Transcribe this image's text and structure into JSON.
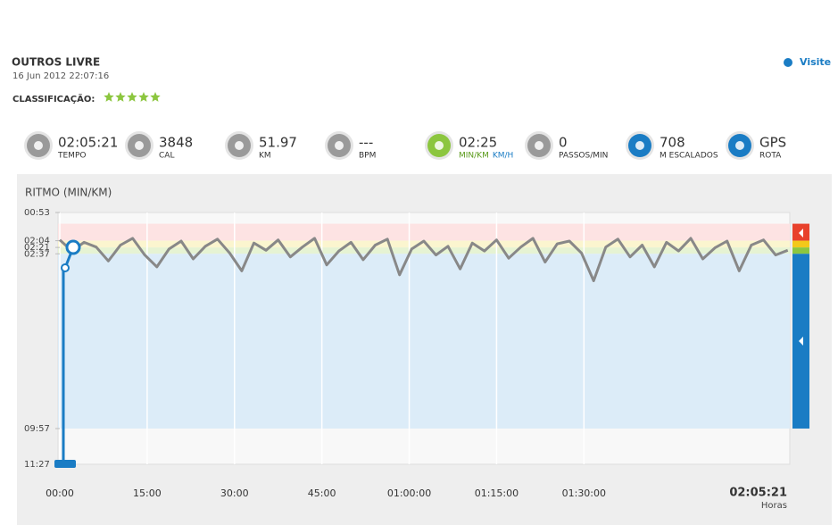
{
  "header": {
    "title": "OUTROS LIVRE",
    "date": "16 Jun 2012 22:07:16",
    "rating_label": "CLASSIFICAÇÃO:",
    "rating": 5,
    "link": "Visite"
  },
  "stats": [
    {
      "value": "02:05:21",
      "label": "TEMPO"
    },
    {
      "value": "3848",
      "label": "CAL"
    },
    {
      "value": "51.97",
      "label": "KM"
    },
    {
      "value": "---",
      "label": "BPM"
    },
    {
      "value": "02:25",
      "label": "MIN/KM",
      "label2": "KM/H"
    },
    {
      "value": "0",
      "label": "PASSOS/MIN"
    },
    {
      "value": "708",
      "label": "M ESCALADOS"
    },
    {
      "value": "GPS",
      "label": "ROTA"
    }
  ],
  "chart_data": {
    "type": "line",
    "title": "RITMO (MIN/KM)",
    "end_label": "02:05:21",
    "x_unit": "Horas",
    "xlim": [
      0,
      7521
    ],
    "xticks": [
      {
        "value": 0,
        "label": "00:00"
      },
      {
        "value": 900,
        "label": "15:00"
      },
      {
        "value": 1800,
        "label": "30:00"
      },
      {
        "value": 2700,
        "label": "45:00"
      },
      {
        "value": 3600,
        "label": "01:00:00"
      },
      {
        "value": 4500,
        "label": "01:15:00"
      },
      {
        "value": 5400,
        "label": "01:30:00"
      }
    ],
    "ylim": [
      687,
      53
    ],
    "yticks": [
      {
        "value": 53,
        "label": "00:53"
      },
      {
        "value": 124,
        "label": "02:04"
      },
      {
        "value": 141,
        "label": "02:21"
      },
      {
        "value": 157,
        "label": "02:37"
      },
      {
        "value": 597,
        "label": "09:57"
      },
      {
        "value": 687,
        "label": "11:27"
      }
    ],
    "x": [
      0,
      125,
      250,
      375,
      500,
      625,
      750,
      875,
      1000,
      1125,
      1250,
      1375,
      1500,
      1625,
      1750,
      1875,
      2000,
      2125,
      2250,
      2375,
      2500,
      2625,
      2750,
      2875,
      3000,
      3125,
      3250,
      3375,
      3500,
      3625,
      3750,
      3875,
      4000,
      4125,
      4250,
      4375,
      4500,
      4625,
      4750,
      4875,
      5000,
      5125,
      5250,
      5375,
      5500,
      5625,
      5750,
      5875,
      6000,
      6125,
      6250,
      6375,
      6500,
      6625,
      6750,
      6875,
      7000,
      7125,
      7250,
      7375,
      7500
    ],
    "series": [
      {
        "color": "#888888",
        "values": [
          122,
          150,
          128,
          140,
          175,
          135,
          118,
          160,
          190,
          145,
          125,
          170,
          138,
          120,
          155,
          200,
          130,
          148,
          122,
          165,
          140,
          118,
          185,
          150,
          128,
          172,
          135,
          120,
          210,
          145,
          125,
          160,
          138,
          195,
          130,
          150,
          122,
          168,
          140,
          118,
          178,
          132,
          125,
          155,
          225,
          140,
          120,
          165,
          135,
          190,
          128,
          150,
          118,
          170,
          142,
          125,
          200,
          135,
          122,
          160,
          148
        ]
      }
    ]
  }
}
